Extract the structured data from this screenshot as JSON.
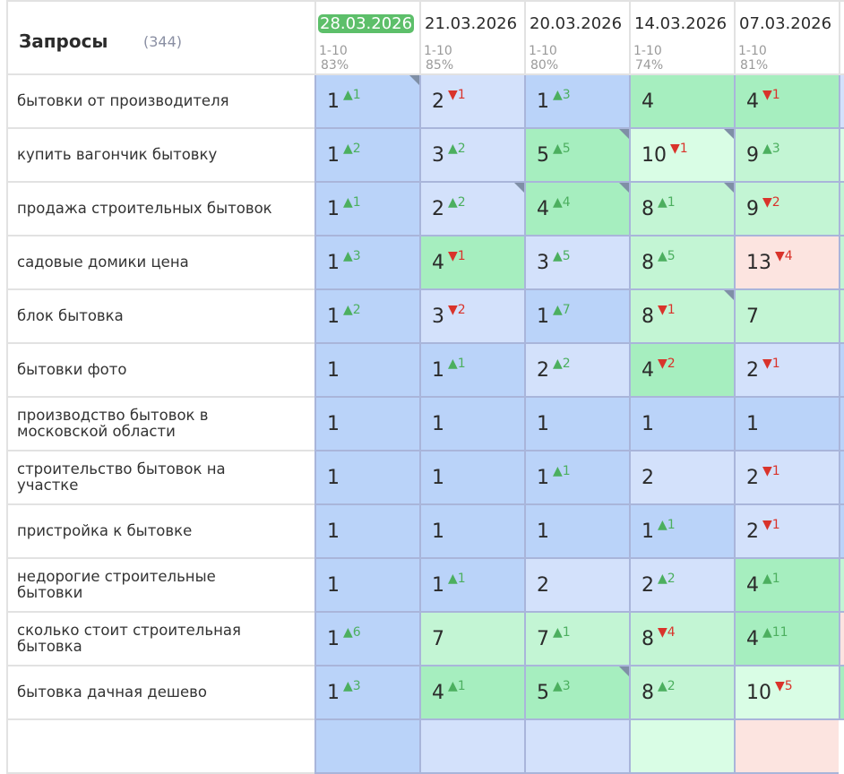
{
  "header": {
    "title": "Запросы",
    "count": "(344)"
  },
  "dates": [
    {
      "date": "28.03.2026",
      "range": "1-10",
      "pct": "83%",
      "current": true
    },
    {
      "date": "21.03.2026",
      "range": "1-10",
      "pct": "85%"
    },
    {
      "date": "20.03.2026",
      "range": "1-10",
      "pct": "80%"
    },
    {
      "date": "14.03.2026",
      "range": "1-10",
      "pct": "74%"
    },
    {
      "date": "07.03.2026",
      "range": "1-10",
      "pct": "81%"
    }
  ],
  "colors": {
    "pos1": "#bad3f9",
    "pos2_3": "#d3e1fb",
    "pos4_6": "#a6eebf",
    "pos7_9": "#c3f5d4",
    "pos10": "#d9fde5",
    "pos11plus": "#fce4e0",
    "up": "#4caf5f",
    "down": "#d9332b",
    "current_date": "#5dbf6a"
  },
  "rows": [
    {
      "query": "бытовки от производителя",
      "cells": [
        {
          "v": 1,
          "d": "▲1",
          "c": true
        },
        {
          "v": 2,
          "d": "▼1"
        },
        {
          "v": 1,
          "d": "▲3"
        },
        {
          "v": 4
        },
        {
          "v": 4,
          "d": "▼1"
        }
      ]
    },
    {
      "query": "купить вагончик бытовку",
      "cells": [
        {
          "v": 1,
          "d": "▲2"
        },
        {
          "v": 3,
          "d": "▲2"
        },
        {
          "v": 5,
          "d": "▲5",
          "c": true
        },
        {
          "v": 10,
          "d": "▼1",
          "c": true
        },
        {
          "v": 9,
          "d": "▲3"
        }
      ]
    },
    {
      "query": "продажа строительных бытовок",
      "cells": [
        {
          "v": 1,
          "d": "▲1"
        },
        {
          "v": 2,
          "d": "▲2",
          "c": true
        },
        {
          "v": 4,
          "d": "▲4",
          "c": true
        },
        {
          "v": 8,
          "d": "▲1",
          "c": true
        },
        {
          "v": 9,
          "d": "▼2"
        }
      ]
    },
    {
      "query": "садовые домики цена",
      "cells": [
        {
          "v": 1,
          "d": "▲3"
        },
        {
          "v": 4,
          "d": "▼1"
        },
        {
          "v": 3,
          "d": "▲5"
        },
        {
          "v": 8,
          "d": "▲5"
        },
        {
          "v": 13,
          "d": "▼4"
        }
      ]
    },
    {
      "query": "блок бытовка",
      "cells": [
        {
          "v": 1,
          "d": "▲2"
        },
        {
          "v": 3,
          "d": "▼2"
        },
        {
          "v": 1,
          "d": "▲7"
        },
        {
          "v": 8,
          "d": "▼1",
          "c": true
        },
        {
          "v": 7
        }
      ]
    },
    {
      "query": "бытовки фото",
      "cells": [
        {
          "v": 1
        },
        {
          "v": 1,
          "d": "▲1"
        },
        {
          "v": 2,
          "d": "▲2"
        },
        {
          "v": 4,
          "d": "▼2"
        },
        {
          "v": 2,
          "d": "▼1"
        }
      ]
    },
    {
      "query": "производство бытовок в московской области",
      "cells": [
        {
          "v": 1
        },
        {
          "v": 1
        },
        {
          "v": 1
        },
        {
          "v": 1
        },
        {
          "v": 1
        }
      ]
    },
    {
      "query": "строительство бытовок на участке",
      "cells": [
        {
          "v": 1
        },
        {
          "v": 1
        },
        {
          "v": 1,
          "d": "▲1"
        },
        {
          "v": 2
        },
        {
          "v": 2,
          "d": "▼1"
        }
      ]
    },
    {
      "query": "пристройка к бытовке",
      "cells": [
        {
          "v": 1
        },
        {
          "v": 1
        },
        {
          "v": 1
        },
        {
          "v": 1,
          "d": "▲1"
        },
        {
          "v": 2,
          "d": "▼1"
        }
      ]
    },
    {
      "query": "недорогие строительные бытовки",
      "cells": [
        {
          "v": 1
        },
        {
          "v": 1,
          "d": "▲1"
        },
        {
          "v": 2
        },
        {
          "v": 2,
          "d": "▲2"
        },
        {
          "v": 4,
          "d": "▲1"
        }
      ]
    },
    {
      "query": "сколько стоит строительная бытовка",
      "cells": [
        {
          "v": 1,
          "d": "▲6"
        },
        {
          "v": 7
        },
        {
          "v": 7,
          "d": "▲1"
        },
        {
          "v": 8,
          "d": "▼4"
        },
        {
          "v": 4,
          "d": "▲11"
        }
      ]
    },
    {
      "query": "бытовка дачная дешево",
      "cells": [
        {
          "v": 1,
          "d": "▲3"
        },
        {
          "v": 4,
          "d": "▲1"
        },
        {
          "v": 5,
          "d": "▲3",
          "c": true
        },
        {
          "v": 8,
          "d": "▲2"
        },
        {
          "v": 10,
          "d": "▼5"
        }
      ]
    }
  ]
}
